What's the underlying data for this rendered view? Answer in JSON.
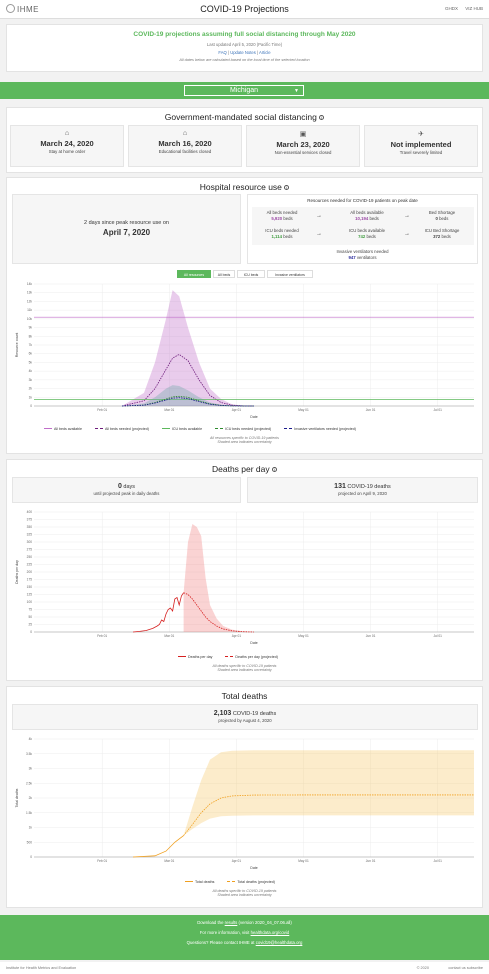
{
  "header": {
    "logo": "IHME",
    "title": "COVID-19 Projections",
    "links": [
      "GHDX",
      "VIZ HUB"
    ]
  },
  "banner": {
    "headline": "COVID-19 projections assuming full social distancing through May 2020",
    "updated": "Last updated April 5, 2020 (Pacific Time)",
    "links": [
      "FAQ",
      "Update Notes",
      "Article"
    ],
    "note": "All dates below are calculated based on the local time of the selected location"
  },
  "location": {
    "selected": "Michigan"
  },
  "distancing": {
    "title": "Government-mandated social distancing",
    "cards": [
      {
        "icon": "home-icon",
        "glyph": "⌂",
        "date": "March 24, 2020",
        "label": "Stay at home order"
      },
      {
        "icon": "school-icon",
        "glyph": "⌂",
        "date": "March 16, 2020",
        "label": "Educational facilities closed"
      },
      {
        "icon": "store-icon",
        "glyph": "▣",
        "date": "March 23, 2020",
        "label": "Non-essential services closed"
      },
      {
        "icon": "plane-icon",
        "glyph": "✈",
        "date": "Not implemented",
        "label": "Travel severely limited"
      }
    ]
  },
  "hospital": {
    "title": "Hospital resource use",
    "peak_days_text": "2 days since peak resource use on",
    "peak_date": "April 7, 2020",
    "resources_title": "Resources needed for COVID-19 patients on peak date",
    "all_beds_needed_label": "All beds needed",
    "all_beds_needed": "5,920",
    "all_beds_available_label": "All beds available",
    "all_beds_available": "10,194",
    "bed_shortage_label": "Bed Shortage",
    "bed_shortage": "0",
    "icu_beds_needed_label": "ICU beds needed",
    "icu_beds_needed": "1,114",
    "icu_beds_available_label": "ICU beds available",
    "icu_beds_available": "742",
    "icu_shortage_label": "ICU Bed Shortage",
    "icu_shortage": "372",
    "vent_label": "Invasive ventilators needed",
    "vent_needed": "947",
    "beds_unit": "beds",
    "vent_unit": "ventilators",
    "tabs": [
      "All resources",
      "All beds",
      "ICU beds",
      "Invasive ventilators"
    ],
    "legend": [
      "All beds available",
      "All beds needed (projected)",
      "ICU beds available",
      "ICU beds needed (projected)",
      "Invasive ventilators needed (projected)"
    ],
    "note1": "All resources specific to COVID-19 patients",
    "note2": "Shaded area indicates uncertainty"
  },
  "deaths_per_day": {
    "title": "Deaths per day",
    "peak_days": "0",
    "peak_days_unit": "days",
    "peak_text": "until projected peak in daily deaths",
    "peak_deaths": "131",
    "peak_deaths_unit": "COVID-19 deaths",
    "peak_date_text": "projected on April 9, 2020",
    "legend": [
      "Deaths per day",
      "Deaths per day (projected)"
    ],
    "note1": "All deaths specific to COVID-19 patients",
    "note2": "Shaded area indicates uncertainty"
  },
  "total_deaths": {
    "title": "Total deaths",
    "total": "2,103",
    "unit": "COVID-19 deaths",
    "by_text": "projected by August 4, 2020",
    "legend": [
      "Total deaths",
      "Total deaths (projected)"
    ],
    "note1": "All deaths specific to COVID-19 patients",
    "note2": "Shaded area indicates uncertainty"
  },
  "footer": {
    "download_pre": "Download the",
    "download_link": "results",
    "download_post": "(version 2020_04_07.06.all)",
    "info_pre": "For more information, visit",
    "info_link": "healthdata.org/covid",
    "contact_pre": "Questions? Please contact IHME at",
    "contact_link": "covid19@healthdata.org"
  },
  "bottom": {
    "left": "Institute for Health Metrics and Evaluation",
    "right": "© 2020",
    "right2": "contact us   subscribe"
  },
  "colors": {
    "green": "#5cb85c",
    "purple": "#c06dc9",
    "dark_purple": "#6d1b7b",
    "icu_green": "#2e8b2e",
    "vent_blue": "#1a1a8c",
    "red": "#d62020",
    "orange": "#f0a020"
  },
  "chart_data": [
    {
      "type": "line",
      "x_ticks": [
        "Feb 01",
        "Mar 01",
        "Apr 01",
        "May 01",
        "Jun 01",
        "Jul 01",
        "Aug 01"
      ],
      "xlabel": "Date",
      "ylabel": "Resource count",
      "y_ticks": [
        "0",
        "1k",
        "2k",
        "3k",
        "4k",
        "5k",
        "6k",
        "7k",
        "8k",
        "9k",
        "10k",
        "11k",
        "12k",
        "13k",
        "14k"
      ],
      "ylim": [
        0,
        14000
      ],
      "series": [
        {
          "name": "All beds available",
          "x_day": [
            0,
            200
          ],
          "values": [
            10194,
            10194
          ]
        },
        {
          "name": "All beds needed (projected)",
          "x_day": [
            40,
            50,
            55,
            60,
            63,
            66,
            70,
            75,
            80,
            85,
            90,
            95,
            100
          ],
          "values": [
            0,
            600,
            2000,
            4200,
            5500,
            5920,
            5200,
            3000,
            1200,
            400,
            100,
            20,
            0
          ],
          "upper": [
            0,
            1500,
            5000,
            10000,
            13300,
            12600,
            9000,
            5000,
            2000,
            800,
            200,
            50,
            0
          ]
        },
        {
          "name": "ICU beds available",
          "x_day": [
            0,
            200
          ],
          "values": [
            742,
            742
          ]
        },
        {
          "name": "ICU beds needed (projected)",
          "x_day": [
            40,
            50,
            55,
            60,
            63,
            66,
            70,
            75,
            80,
            85,
            90,
            95,
            100
          ],
          "values": [
            0,
            100,
            400,
            800,
            1050,
            1114,
            1000,
            600,
            250,
            80,
            20,
            5,
            0
          ],
          "upper": [
            0,
            300,
            1000,
            2000,
            2400,
            2300,
            1800,
            1000,
            400,
            150,
            40,
            10,
            0
          ]
        },
        {
          "name": "Invasive ventilators needed (projected)",
          "x_day": [
            40,
            50,
            55,
            60,
            63,
            66,
            70,
            75,
            80,
            85,
            90,
            95,
            100
          ],
          "values": [
            0,
            90,
            340,
            680,
            900,
            947,
            850,
            500,
            200,
            60,
            15,
            4,
            0
          ]
        }
      ]
    },
    {
      "type": "line",
      "x_ticks": [
        "Feb 01",
        "Mar 01",
        "Apr 01",
        "May 01",
        "Jun 01",
        "Jul 01",
        "Aug 01"
      ],
      "xlabel": "Date",
      "ylabel": "Deaths per day",
      "y_ticks": [
        "0",
        "25",
        "50",
        "75",
        "100",
        "125",
        "150",
        "175",
        "200",
        "225",
        "250",
        "275",
        "300",
        "325",
        "350",
        "375",
        "400"
      ],
      "ylim": [
        0,
        400
      ],
      "series": [
        {
          "name": "Deaths per day",
          "x_day": [
            45,
            48,
            51,
            54,
            56,
            57,
            58,
            59,
            60,
            61,
            62,
            63,
            64,
            65,
            66,
            67,
            68
          ],
          "values": [
            0,
            2,
            5,
            12,
            20,
            25,
            40,
            35,
            60,
            75,
            80,
            70,
            110,
            115,
            90,
            120,
            131
          ]
        },
        {
          "name": "Deaths per day (projected)",
          "x_day": [
            68,
            70,
            72,
            74,
            76,
            78,
            80,
            83,
            86,
            90,
            95,
            100
          ],
          "values": [
            131,
            125,
            110,
            90,
            70,
            50,
            35,
            20,
            10,
            4,
            1,
            0
          ],
          "upper": [
            131,
            300,
            360,
            350,
            320,
            180,
            90,
            45,
            20,
            8,
            2,
            0
          ]
        }
      ]
    },
    {
      "type": "line",
      "x_ticks": [
        "Feb 01",
        "Mar 01",
        "Apr 01",
        "May 01",
        "Jun 01",
        "Jul 01",
        "Aug 01"
      ],
      "xlabel": "Date",
      "ylabel": "Total deaths",
      "y_ticks": [
        "0",
        "500",
        "1k",
        "1.5k",
        "2k",
        "2.5k",
        "3k",
        "3.5k",
        "4k"
      ],
      "ylim": [
        0,
        4000
      ],
      "series": [
        {
          "name": "Total deaths",
          "x_day": [
            45,
            55,
            60,
            64,
            68
          ],
          "values": [
            0,
            40,
            200,
            500,
            727
          ]
        },
        {
          "name": "Total deaths (projected)",
          "x_day": [
            68,
            72,
            76,
            80,
            85,
            90,
            100,
            120,
            150,
            200
          ],
          "values": [
            727,
            1100,
            1500,
            1800,
            2000,
            2070,
            2100,
            2103,
            2103,
            2103
          ],
          "upper": [
            727,
            1700,
            2600,
            3300,
            3550,
            3600,
            3620,
            3620,
            3620,
            3620
          ],
          "lower": [
            727,
            950,
            1150,
            1300,
            1380,
            1400,
            1410,
            1410,
            1410,
            1410
          ]
        }
      ]
    }
  ]
}
